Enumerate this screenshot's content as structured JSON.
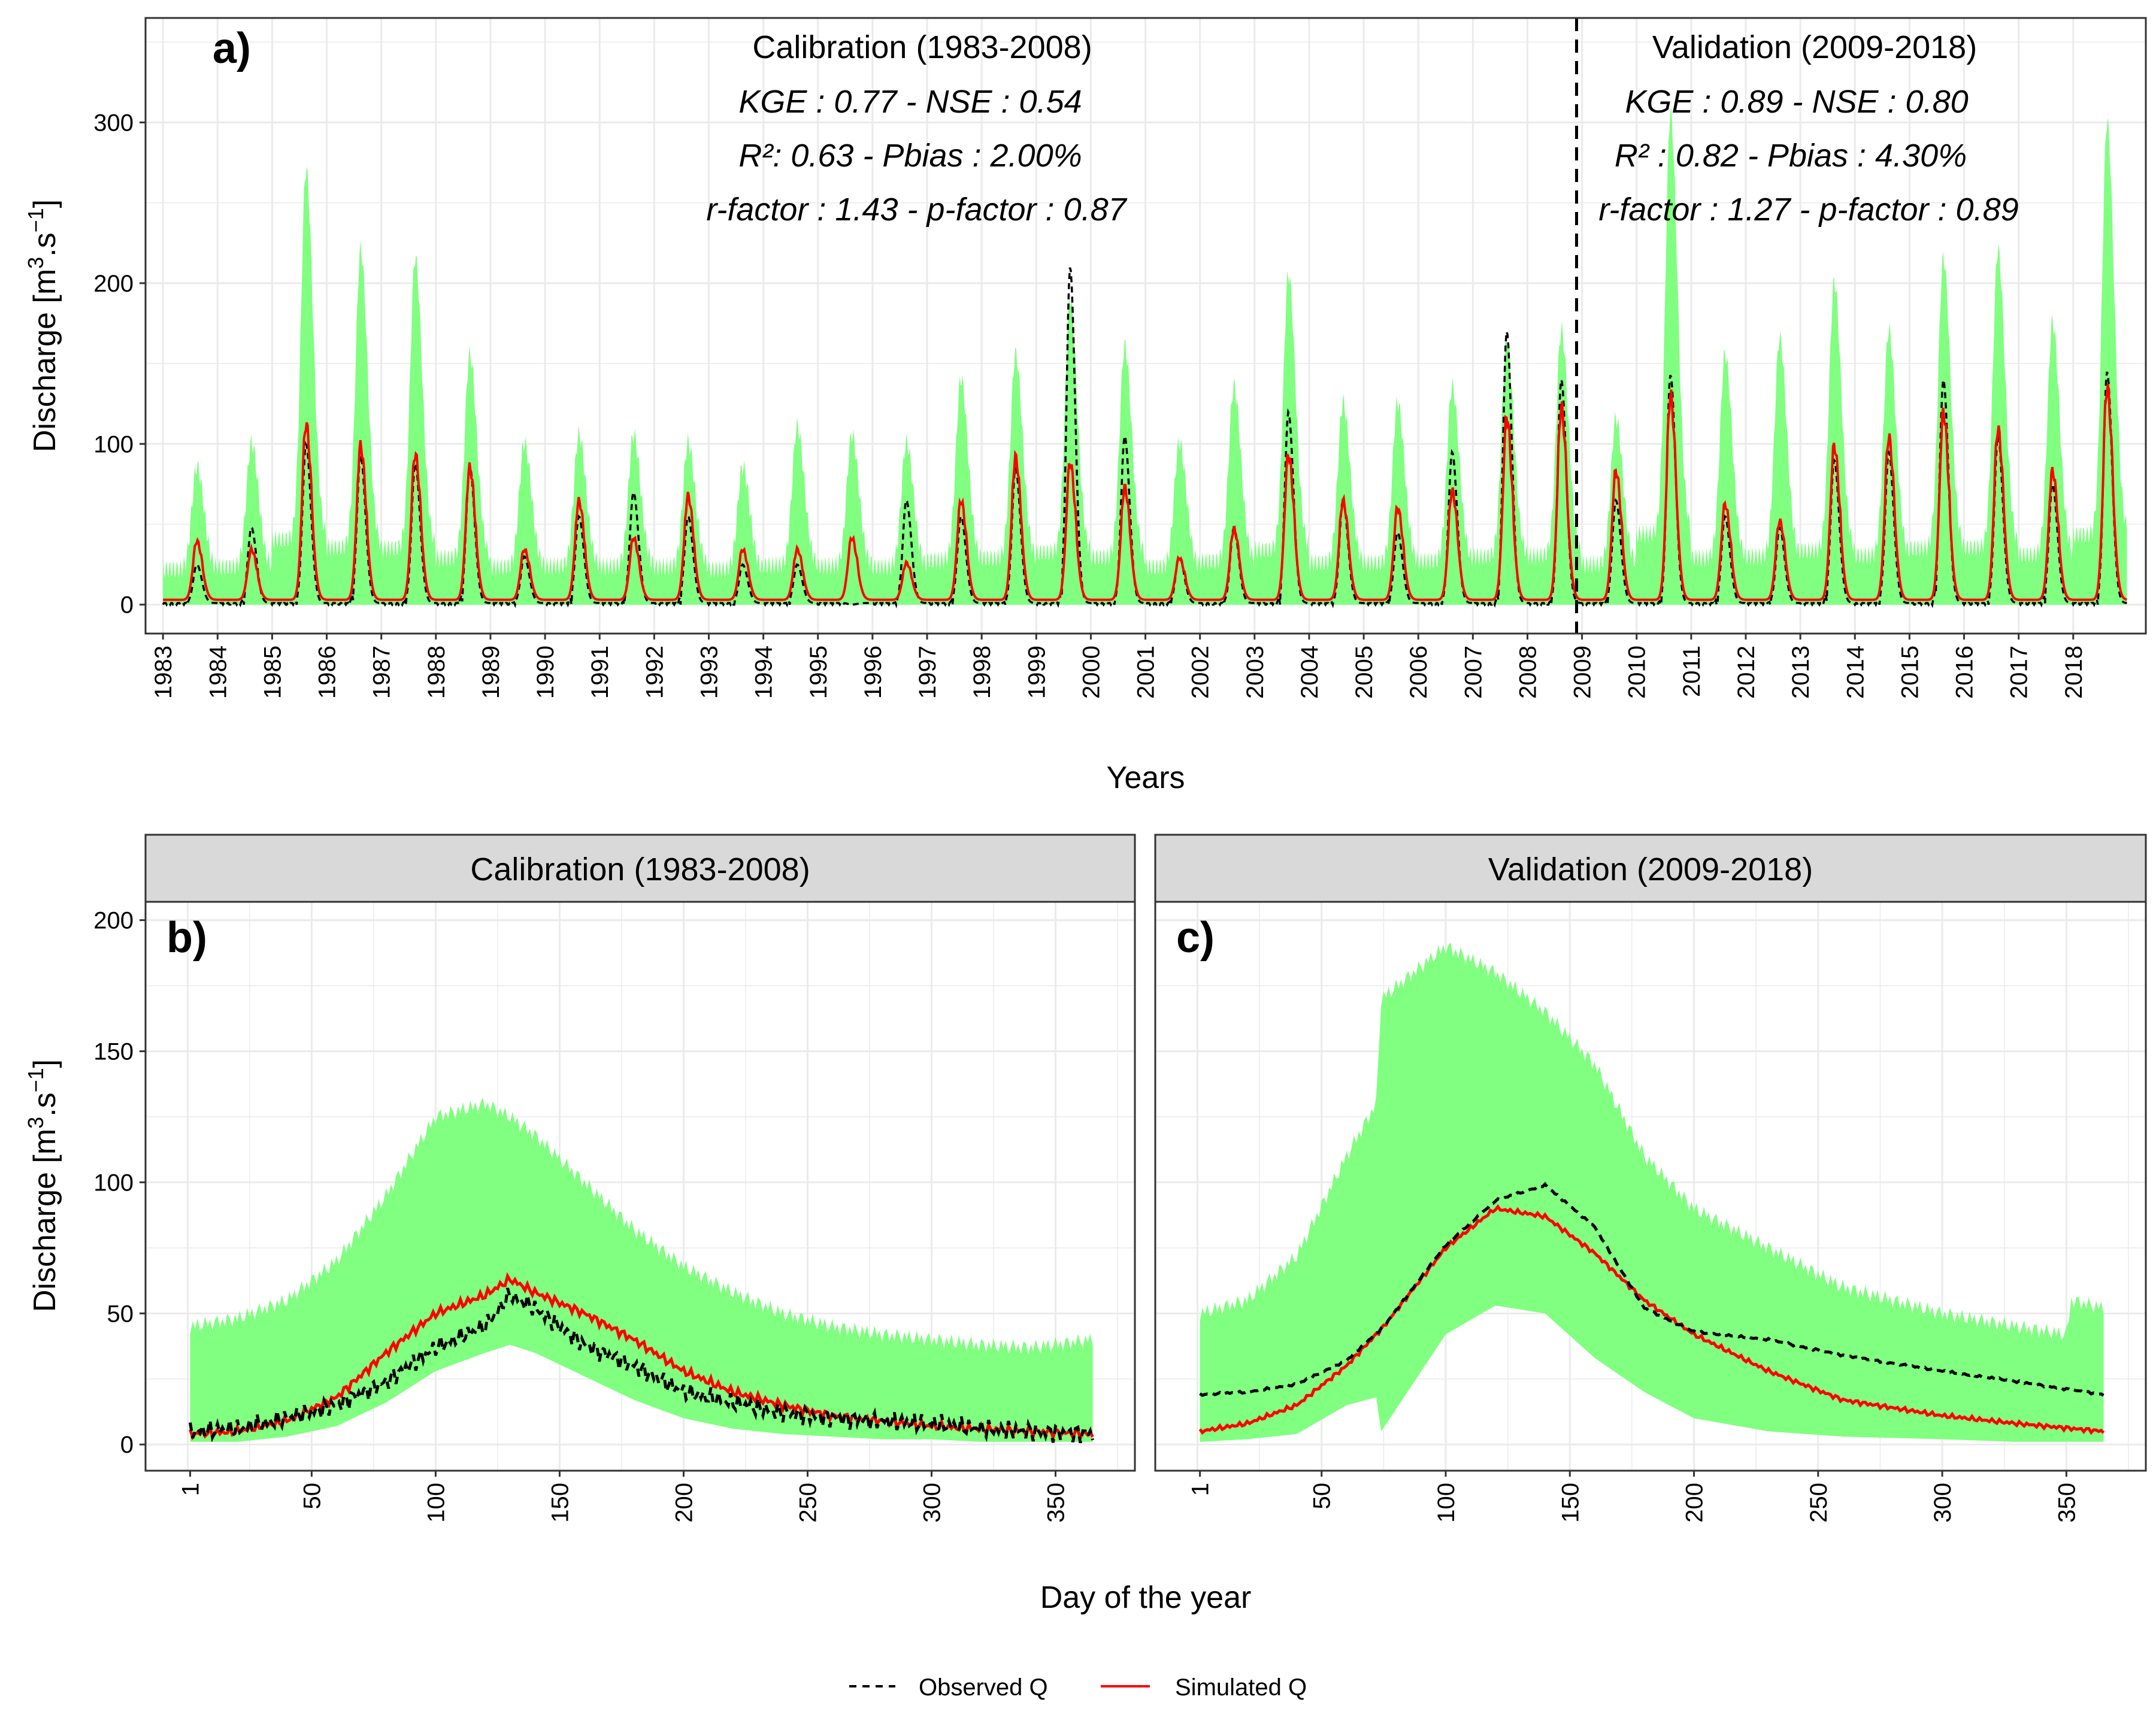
{
  "figure": {
    "colors": {
      "band": "#80ff80",
      "observed": "#000000",
      "simulated": "#ff0000",
      "strip_bg": "#d9d9d9",
      "grid": "#ebebeb"
    },
    "legend": {
      "observed_label": "Observed Q",
      "simulated_label": "Simulated Q",
      "position": "bottom"
    }
  },
  "chart_data": [
    {
      "panel": "a)",
      "type": "line",
      "xlabel": "Years",
      "ylabel": "Discharge [m3.s-1]",
      "xlim": [
        1983,
        2018.95
      ],
      "ylim": [
        -18,
        365
      ],
      "yticks": [
        0,
        100,
        200,
        300
      ],
      "xticks": [
        "1983",
        "1984",
        "1985",
        "1986",
        "1987",
        "1988",
        "1989",
        "1990",
        "1991",
        "1992",
        "1993",
        "1994",
        "1995",
        "1996",
        "1997",
        "1998",
        "1999",
        "2000",
        "2001",
        "2002",
        "2003",
        "2004",
        "2005",
        "2006",
        "2007",
        "2008",
        "2009",
        "2010",
        "2011",
        "2012",
        "2013",
        "2014",
        "2015",
        "2016",
        "2017",
        "2018"
      ],
      "grid": true,
      "split_year": 2008.9,
      "annotations": {
        "calibration": {
          "title": "Calibration (1983-2008)",
          "line1": "KGE : 0.77 - NSE : 0.54",
          "line2": "R²: 0.63 - Pbias : 2.00%",
          "line3": "r-factor : 1.43 - p-factor : 0.87"
        },
        "validation": {
          "title": "Validation (2009-2018)",
          "line1": "KGE : 0.89 - NSE : 0.80",
          "line2": "R² : 0.82 - Pbias : 4.30%",
          "line3": "r-factor : 1.27 - p-factor : 0.89"
        }
      },
      "annual": {
        "years": [
          1983,
          1984,
          1985,
          1986,
          1987,
          1988,
          1989,
          1990,
          1991,
          1992,
          1993,
          1994,
          1995,
          1996,
          1997,
          1998,
          1999,
          2000,
          2001,
          2002,
          2003,
          2004,
          2005,
          2006,
          2007,
          2008,
          2009,
          2010,
          2011,
          2012,
          2013,
          2014,
          2015,
          2016,
          2017,
          2018
        ],
        "simulated_peak": [
          38,
          33,
          108,
          95,
          90,
          82,
          33,
          62,
          40,
          65,
          33,
          33,
          40,
          25,
          62,
          88,
          85,
          70,
          28,
          45,
          90,
          62,
          58,
          68,
          112,
          118,
          80,
          125,
          60,
          50,
          95,
          100,
          115,
          105,
          80,
          130
        ],
        "observed_peak": [
          25,
          48,
          100,
          93,
          88,
          86,
          30,
          55,
          70,
          55,
          25,
          25,
          0,
          65,
          55,
          85,
          210,
          105,
          30,
          48,
          120,
          65,
          45,
          95,
          170,
          140,
          65,
          143,
          55,
          48,
          90,
          95,
          140,
          105,
          75,
          145
        ],
        "band_upper": [
          80,
          95,
          265,
          215,
          210,
          150,
          95,
          100,
          100,
          95,
          80,
          105,
          100,
          95,
          135,
          150,
          185,
          155,
          95,
          130,
          200,
          120,
          120,
          130,
          160,
          165,
          110,
          300,
          150,
          160,
          195,
          165,
          210,
          215,
          170,
          295
        ]
      }
    },
    {
      "panel": "b)",
      "strip": "Calibration (1983-2008)",
      "type": "line",
      "xlabel": "Day of the year",
      "ylabel": "Discharge [m3.s-1]",
      "xlim": [
        -17,
        382
      ],
      "ylim": [
        -10,
        207
      ],
      "xticks": [
        1,
        50,
        100,
        150,
        200,
        250,
        300,
        350
      ],
      "yticks": [
        0,
        50,
        100,
        150,
        200
      ],
      "series": [
        {
          "name": "Observed Q",
          "x": [
            1,
            20,
            40,
            60,
            80,
            100,
            120,
            130,
            140,
            160,
            180,
            200,
            220,
            240,
            260,
            280,
            300,
            320,
            340,
            365
          ],
          "values": [
            5,
            6,
            10,
            15,
            24,
            37,
            45,
            57,
            52,
            38,
            30,
            20,
            16,
            12,
            10,
            9,
            8,
            6,
            5,
            4
          ]
        },
        {
          "name": "Simulated Q",
          "x": [
            1,
            20,
            40,
            60,
            80,
            100,
            120,
            130,
            140,
            160,
            180,
            200,
            220,
            240,
            260,
            280,
            300,
            320,
            340,
            365
          ],
          "values": [
            4,
            5,
            9,
            18,
            35,
            50,
            57,
            63,
            58,
            50,
            40,
            28,
            20,
            15,
            11,
            9,
            7,
            6,
            5,
            4
          ]
        }
      ],
      "band": {
        "x": [
          1,
          20,
          40,
          60,
          80,
          100,
          120,
          130,
          140,
          160,
          180,
          200,
          220,
          240,
          260,
          280,
          300,
          320,
          340,
          365
        ],
        "lower": [
          1,
          1,
          3,
          7,
          16,
          28,
          35,
          38,
          35,
          26,
          17,
          10,
          6,
          4,
          3,
          2,
          2,
          1,
          1,
          1
        ],
        "upper": [
          45,
          48,
          55,
          70,
          95,
          125,
          130,
          125,
          118,
          100,
          82,
          68,
          58,
          50,
          45,
          42,
          40,
          38,
          37,
          40
        ]
      }
    },
    {
      "panel": "c)",
      "strip": "Validation (2009-2018)",
      "type": "line",
      "xlabel": "Day of the year",
      "ylabel": "Discharge [m3.s-1]",
      "xlim": [
        -17,
        382
      ],
      "ylim": [
        -10,
        207
      ],
      "xticks": [
        1,
        50,
        100,
        150,
        200,
        250,
        300,
        350
      ],
      "yticks": [
        0,
        50,
        100,
        150,
        200
      ],
      "series": [
        {
          "name": "Observed Q",
          "x": [
            1,
            20,
            40,
            60,
            75,
            100,
            120,
            140,
            160,
            180,
            200,
            230,
            260,
            300,
            330,
            365
          ],
          "values": [
            19,
            20,
            23,
            32,
            45,
            76,
            93,
            99,
            83,
            52,
            43,
            40,
            34,
            28,
            24,
            19
          ]
        },
        {
          "name": "Simulated Q",
          "x": [
            1,
            20,
            40,
            60,
            75,
            100,
            120,
            140,
            160,
            180,
            200,
            230,
            260,
            300,
            330,
            365
          ],
          "values": [
            5,
            8,
            15,
            30,
            45,
            75,
            90,
            87,
            73,
            55,
            42,
            28,
            17,
            11,
            8,
            5
          ]
        }
      ],
      "band": {
        "x": [
          1,
          20,
          40,
          60,
          72,
          74,
          100,
          120,
          140,
          160,
          180,
          200,
          230,
          260,
          300,
          330,
          350,
          352,
          365
        ],
        "lower": [
          1,
          2,
          4,
          15,
          18,
          5,
          42,
          53,
          50,
          33,
          20,
          10,
          5,
          3,
          2,
          1,
          1,
          1,
          1
        ],
        "upper": [
          50,
          55,
          72,
          110,
          130,
          170,
          190,
          180,
          165,
          145,
          110,
          90,
          75,
          60,
          50,
          45,
          42,
          55,
          52
        ]
      }
    }
  ]
}
